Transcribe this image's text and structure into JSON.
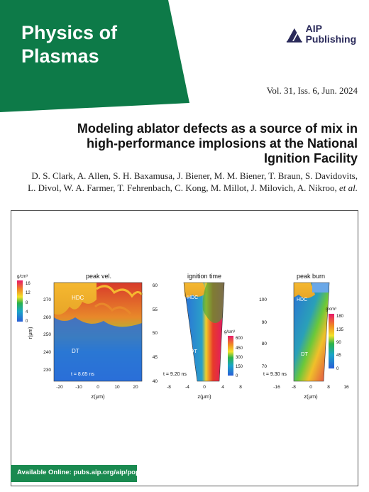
{
  "journal": {
    "title": "Physics of Plasmas"
  },
  "publisher": {
    "name": "AIP Publishing"
  },
  "issue": {
    "line": "Vol. 31, Iss. 6, Jun. 2024"
  },
  "article": {
    "title": "Modeling ablator defects as a source of mix in high-performance implosions at the National Ignition Facility",
    "authors_line1": "D. S. Clark, A. Allen, S. H. Baxamusa, J. Biener, M. M. Biener, T. Braun, S. Davidovits,",
    "authors_line2": "L. Divol, W. A. Farmer, T. Fehrenbach, C. Kong, M. Millot, J. Milovich, A. Nikroo,",
    "authors_etal": "et al."
  },
  "figure": {
    "panels": [
      {
        "title": "peak vel.",
        "time_label": "t = 8.65 ns",
        "x_label": "z(μm)",
        "y_label": "r(μm)",
        "x_ticks": [
          "-20",
          "-10",
          "0",
          "10",
          "20"
        ],
        "y_ticks": [
          "270",
          "260",
          "250",
          "240",
          "230"
        ],
        "region_labels": [
          "HDC",
          "DT"
        ],
        "colorbar_unit": "g/cm³",
        "colorbar_ticks": [
          "16",
          "12",
          "8",
          "4",
          "0"
        ]
      },
      {
        "title": "ignition time",
        "time_label": "t = 9.20 ns",
        "x_label": "z(μm)",
        "x_ticks": [
          "-8",
          "-4",
          "0",
          "4",
          "8"
        ],
        "y_ticks": [
          "60",
          "55",
          "50",
          "45",
          "40"
        ],
        "region_labels": [
          "HDC",
          "DT"
        ],
        "colorbar_unit": "g/cm³",
        "colorbar_ticks": [
          "600",
          "450",
          "300",
          "150",
          "0"
        ]
      },
      {
        "title": "peak burn",
        "time_label": "t = 9.30 ns",
        "x_label": "z(μm)",
        "x_ticks": [
          "-16",
          "-8",
          "0",
          "8",
          "16"
        ],
        "y_ticks": [
          "100",
          "90",
          "80",
          "70"
        ],
        "region_labels": [
          "HDC",
          "DT"
        ],
        "colorbar_unit": "g/cm³",
        "colorbar_ticks": [
          "180",
          "135",
          "90",
          "45",
          "0"
        ]
      }
    ]
  },
  "footer": {
    "available_online": "Available Online: pubs.aip.org/aip/pop"
  },
  "colors": {
    "banner_green": "#0d7a48",
    "footer_green": "#1a8a50",
    "logo_navy": "#2a2a5a"
  }
}
